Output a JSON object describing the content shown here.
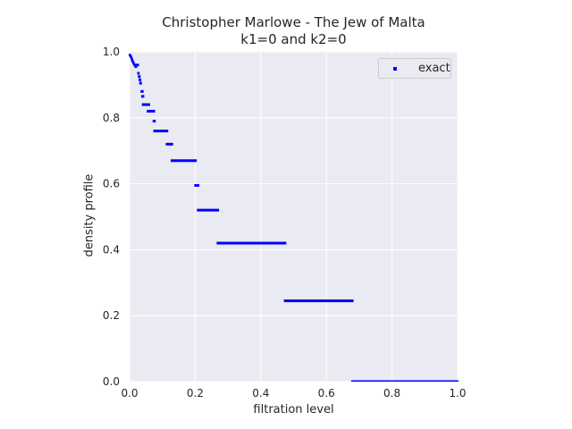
{
  "chart_data": {
    "type": "scatter",
    "title": "Christopher Marlowe - The Jew of Malta",
    "subtitle": "k1=0 and k2=0",
    "xlabel": "filtration level",
    "ylabel": "density profile",
    "xlim": [
      0.0,
      1.0
    ],
    "ylim": [
      0.0,
      1.0
    ],
    "x_ticks": [
      "0.0",
      "0.2",
      "0.4",
      "0.6",
      "0.8",
      "1.0"
    ],
    "y_ticks": [
      "0.0",
      "0.2",
      "0.4",
      "0.6",
      "0.8",
      "1.0"
    ],
    "grid": true,
    "legend_position": "top-right",
    "series": [
      {
        "name": "exact",
        "color": "#0000ff",
        "marker": "square",
        "segments": [
          {
            "x": [
              0.0,
              0.002
            ],
            "y": 0.99
          },
          {
            "x": [
              0.003,
              0.005
            ],
            "y": 0.985
          },
          {
            "x": [
              0.006,
              0.008
            ],
            "y": 0.978
          },
          {
            "x": [
              0.008,
              0.01
            ],
            "y": 0.972
          },
          {
            "x": [
              0.011,
              0.013
            ],
            "y": 0.966
          },
          {
            "x": [
              0.014,
              0.026
            ],
            "y": 0.96
          },
          {
            "x": [
              0.018,
              0.02
            ],
            "y": 0.955
          },
          {
            "x": [
              0.026,
              0.028
            ],
            "y": 0.935
          },
          {
            "x": [
              0.028,
              0.031
            ],
            "y": 0.925
          },
          {
            "x": [
              0.03,
              0.033
            ],
            "y": 0.915
          },
          {
            "x": [
              0.032,
              0.035
            ],
            "y": 0.905
          },
          {
            "x": [
              0.036,
              0.04
            ],
            "y": 0.88
          },
          {
            "x": [
              0.038,
              0.042
            ],
            "y": 0.865
          },
          {
            "x": [
              0.04,
              0.06
            ],
            "y": 0.84
          },
          {
            "x": [
              0.055,
              0.075
            ],
            "y": 0.82
          },
          {
            "x": [
              0.073,
              0.077
            ],
            "y": 0.79
          },
          {
            "x": [
              0.075,
              0.115
            ],
            "y": 0.76
          },
          {
            "x": [
              0.113,
              0.13
            ],
            "y": 0.72
          },
          {
            "x": [
              0.128,
              0.202
            ],
            "y": 0.67
          },
          {
            "x": [
              0.2,
              0.21
            ],
            "y": 0.595
          },
          {
            "x": [
              0.208,
              0.27
            ],
            "y": 0.52
          },
          {
            "x": [
              0.268,
              0.475
            ],
            "y": 0.42
          },
          {
            "x": [
              0.473,
              0.68
            ],
            "y": 0.245
          },
          {
            "x": [
              0.678,
              1.0
            ],
            "y": 0.0
          }
        ]
      }
    ]
  }
}
